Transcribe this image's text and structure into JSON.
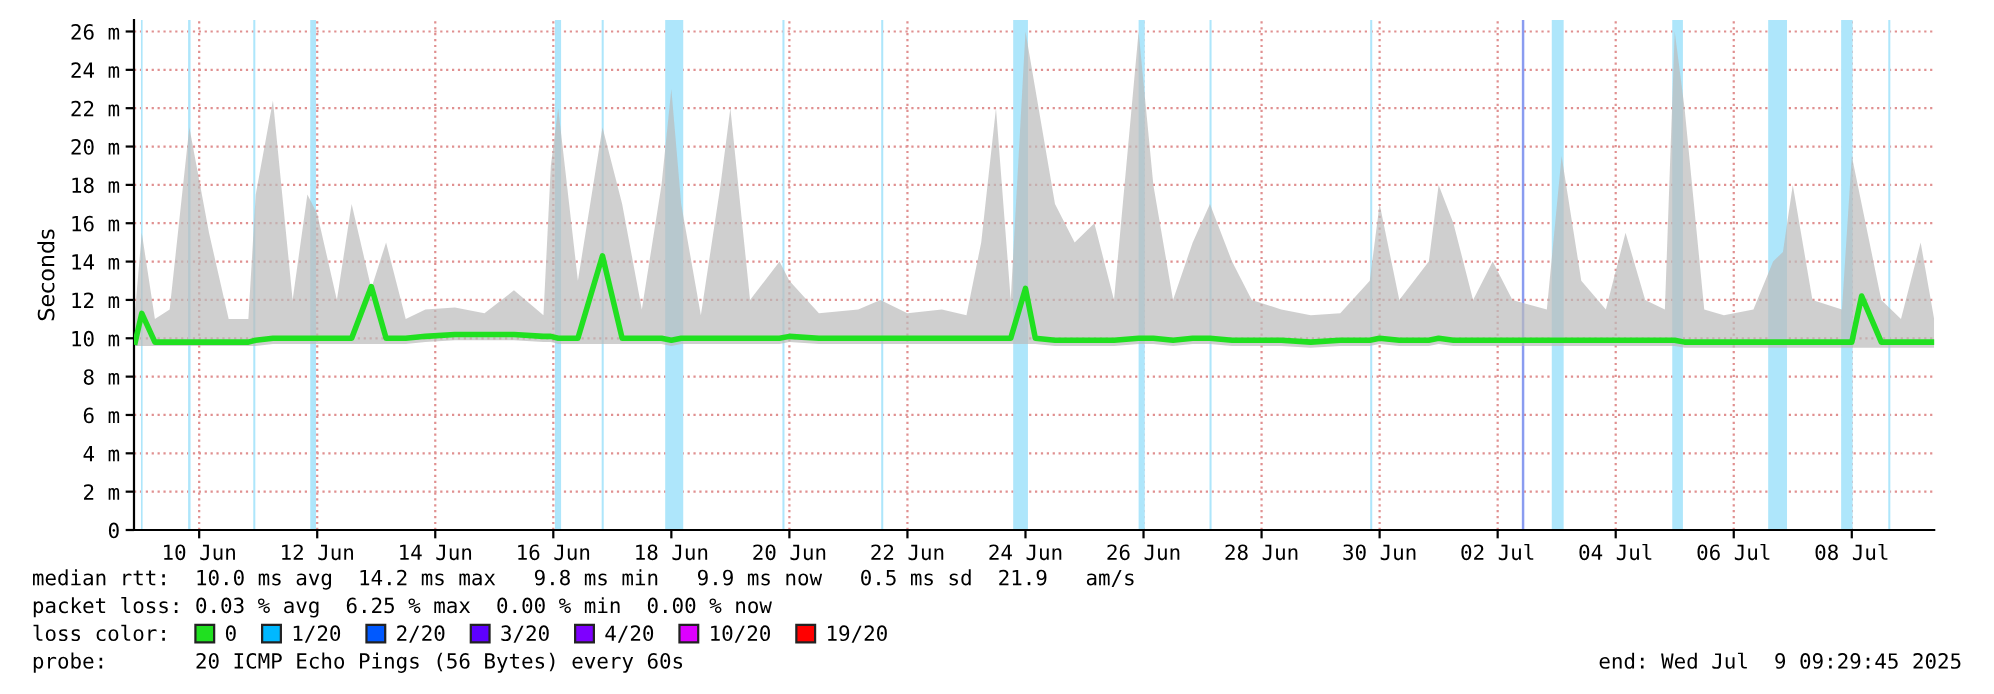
{
  "chart_data": {
    "type": "line",
    "ylabel": "Seconds",
    "legend_title": "loss color:",
    "annotations": [
      "median rtt:  10.0 ms avg  14.2 ms max   9.8 ms min   9.9 ms now   0.5 ms sd  21.9   am/s",
      "packet loss: 0.03 % avg  6.25 % max  0.00 % min  0.00 % now",
      "probe:       20 ICMP Echo Pings (56 Bytes) every 60s",
      "end: Wed Jul  9 09:29:45 2025"
    ],
    "x": [
      "2025-06-08T22:00",
      "2025-06-09T00:40",
      "2025-06-09T06:00",
      "2025-06-09T12:00",
      "2025-06-09T20:00",
      "2025-06-10T04:00",
      "2025-06-10T12:00",
      "2025-06-10T20:00",
      "2025-06-10T23:00",
      "2025-06-11T06:00",
      "2025-06-11T14:00",
      "2025-06-11T20:00",
      "2025-06-12T00:00",
      "2025-06-12T08:00",
      "2025-06-12T14:00",
      "2025-06-12T22:00",
      "2025-06-13T04:00",
      "2025-06-13T12:00",
      "2025-06-13T20:00",
      "2025-06-14T08:00",
      "2025-06-14T20:00",
      "2025-06-15T08:00",
      "2025-06-15T20:00",
      "2025-06-15T23:00",
      "2025-06-16T02:00",
      "2025-06-16T10:00",
      "2025-06-16T20:00",
      "2025-06-17T04:00",
      "2025-06-17T12:00",
      "2025-06-17T20:00",
      "2025-06-18T00:00",
      "2025-06-18T04:00",
      "2025-06-18T12:00",
      "2025-06-18T20:00",
      "2025-06-19T00:00",
      "2025-06-19T08:00",
      "2025-06-19T20:00",
      "2025-06-20T00:00",
      "2025-06-20T12:00",
      "2025-06-21T04:00",
      "2025-06-21T13:00",
      "2025-06-22T00:00",
      "2025-06-22T14:00",
      "2025-06-23T00:00",
      "2025-06-23T06:00",
      "2025-06-23T12:00",
      "2025-06-23T18:00",
      "2025-06-24T00:00",
      "2025-06-24T04:00",
      "2025-06-24T12:00",
      "2025-06-24T20:00",
      "2025-06-25T04:00",
      "2025-06-25T12:00",
      "2025-06-25T22:00",
      "2025-06-26T04:00",
      "2025-06-26T12:00",
      "2025-06-26T20:00",
      "2025-06-27T03:00",
      "2025-06-27T12:00",
      "2025-06-27T20:00",
      "2025-06-28T08:00",
      "2025-06-28T20:00",
      "2025-06-29T08:00",
      "2025-06-29T20:00",
      "2025-06-30T00:00",
      "2025-06-30T08:00",
      "2025-06-30T20:00",
      "2025-07-01T00:00",
      "2025-07-01T06:00",
      "2025-07-01T14:00",
      "2025-07-01T22:00",
      "2025-07-02T06:00",
      "2025-07-02T20:00",
      "2025-07-03T02:00",
      "2025-07-03T10:00",
      "2025-07-03T20:00",
      "2025-07-04T04:00",
      "2025-07-04T12:00",
      "2025-07-04T20:00",
      "2025-07-05T00:00",
      "2025-07-05T04:00",
      "2025-07-05T12:00",
      "2025-07-05T20:00",
      "2025-07-06T08:00",
      "2025-07-06T16:00",
      "2025-07-06T20:00",
      "2025-07-07T00:00",
      "2025-07-07T08:00",
      "2025-07-07T20:00",
      "2025-07-08T00:00",
      "2025-07-08T04:00",
      "2025-07-08T12:00",
      "2025-07-08T20:00",
      "2025-07-09T04:00",
      "2025-07-09T09:29"
    ],
    "series": [
      {
        "name": "0",
        "color": "#20e020",
        "values": [
          9.8,
          11.3,
          9.8,
          9.8,
          9.8,
          9.8,
          9.8,
          9.8,
          9.9,
          10,
          10,
          10,
          10,
          10,
          10,
          12.7,
          10,
          10,
          10.1,
          10.2,
          10.2,
          10.2,
          10.1,
          10.1,
          10,
          10,
          14.3,
          10,
          10,
          10,
          9.9,
          10,
          10,
          10,
          10,
          10,
          10,
          10.1,
          10,
          10,
          10,
          10,
          10,
          10,
          10,
          10,
          10,
          12.6,
          10,
          9.9,
          9.9,
          9.9,
          9.9,
          10,
          10,
          9.9,
          10,
          10,
          9.9,
          9.9,
          9.9,
          9.8,
          9.9,
          9.9,
          10,
          9.9,
          9.9,
          10,
          9.9,
          9.9,
          9.9,
          9.9,
          9.9,
          9.9,
          9.9,
          9.9,
          9.9,
          9.9,
          9.9,
          9.9,
          9.8,
          9.8,
          9.8,
          9.8,
          9.8,
          9.8,
          9.8,
          9.8,
          9.8,
          9.8,
          12.2,
          9.8,
          9.8,
          9.8,
          9.8
        ],
        "lower": [
          9.6,
          9.6,
          9.6,
          9.6,
          9.6,
          9.6,
          9.6,
          9.6,
          9.6,
          9.7,
          9.7,
          9.7,
          9.7,
          9.7,
          9.7,
          9.7,
          9.7,
          9.7,
          9.8,
          9.9,
          9.9,
          9.9,
          9.8,
          9.8,
          9.7,
          9.7,
          9.7,
          9.7,
          9.7,
          9.7,
          9.6,
          9.7,
          9.7,
          9.7,
          9.7,
          9.7,
          9.7,
          9.8,
          9.7,
          9.7,
          9.7,
          9.7,
          9.7,
          9.7,
          9.7,
          9.7,
          9.7,
          9.7,
          9.7,
          9.6,
          9.6,
          9.6,
          9.6,
          9.7,
          9.7,
          9.6,
          9.7,
          9.7,
          9.6,
          9.6,
          9.6,
          9.5,
          9.6,
          9.6,
          9.7,
          9.6,
          9.6,
          9.7,
          9.6,
          9.6,
          9.6,
          9.6,
          9.6,
          9.6,
          9.6,
          9.6,
          9.6,
          9.6,
          9.6,
          9.6,
          9.5,
          9.5,
          9.5,
          9.5,
          9.5,
          9.5,
          9.5,
          9.5,
          9.5,
          9.5,
          9.5,
          9.5,
          9.5,
          9.5,
          9.5
        ],
        "upper": [
          11.5,
          15.5,
          11,
          11.5,
          21,
          15.5,
          11,
          11,
          17.5,
          22.4,
          12,
          17.5,
          16.5,
          12,
          17,
          12.6,
          15,
          11,
          11.5,
          11.6,
          11.3,
          12.5,
          11.2,
          19,
          22,
          13,
          21,
          17,
          11.5,
          18,
          23,
          17,
          11.2,
          18,
          22,
          12,
          14,
          13,
          11.3,
          11.5,
          12,
          11.3,
          11.5,
          11.2,
          15,
          22,
          12,
          26,
          23,
          17,
          15,
          16,
          12,
          26,
          18,
          12,
          15,
          17,
          14,
          12,
          11.5,
          11.2,
          11.3,
          13,
          17,
          12,
          14,
          18,
          16,
          12,
          14,
          12,
          11.5,
          19.5,
          13,
          11.5,
          15.5,
          12,
          11.5,
          26,
          22,
          11.5,
          11.2,
          11.5,
          14,
          14.5,
          18,
          12,
          11.5,
          19.5,
          17,
          12,
          11,
          15,
          11
        ]
      },
      {
        "name": "1/20",
        "color": "#00b8ff",
        "values": [
          null,
          null,
          null,
          null,
          null,
          null,
          null,
          null,
          null,
          null,
          null,
          null,
          null,
          null,
          null,
          null,
          null,
          null,
          null,
          null,
          null,
          null,
          null,
          null,
          null,
          null,
          null,
          null,
          null,
          null,
          null,
          null,
          null,
          null,
          null,
          null,
          null,
          null,
          null,
          null,
          null,
          null,
          null,
          null,
          null,
          null,
          null,
          null,
          null,
          null,
          null,
          null,
          null,
          null,
          null,
          null,
          null,
          null,
          null,
          null,
          null,
          null,
          null,
          null,
          null,
          null,
          null,
          null,
          null,
          null,
          null,
          null,
          null,
          null,
          null,
          null,
          null,
          null,
          null,
          null,
          null,
          null,
          null,
          null,
          null,
          null,
          null,
          null,
          null,
          null,
          null,
          null,
          null,
          null,
          null
        ]
      },
      {
        "name": "2/20",
        "color": "#0059ff",
        "values": [
          null,
          null,
          null,
          null,
          null,
          null,
          null,
          null,
          null,
          null,
          null,
          null,
          null,
          null,
          null,
          null,
          null,
          null,
          null,
          null,
          null,
          null,
          null,
          null,
          null,
          null,
          null,
          null,
          null,
          null,
          null,
          null,
          null,
          null,
          null,
          null,
          null,
          null,
          null,
          null,
          null,
          null,
          null,
          null,
          null,
          null,
          null,
          null,
          null,
          null,
          null,
          null,
          null,
          null,
          null,
          null,
          null,
          null,
          null,
          null,
          null,
          null,
          null,
          null,
          null,
          null,
          null,
          null,
          null,
          null,
          null,
          null,
          null,
          null,
          null,
          null,
          null,
          null,
          null,
          null,
          null,
          null,
          null,
          null,
          null,
          null,
          null,
          null,
          null,
          null,
          null,
          null,
          null,
          null,
          null
        ]
      },
      {
        "name": "3/20",
        "color": "#5e00ff",
        "values": [
          null,
          null,
          null,
          null,
          null,
          null,
          null,
          null,
          null,
          null,
          null,
          null,
          null,
          null,
          null,
          null,
          null,
          null,
          null,
          null,
          null,
          null,
          null,
          null,
          null,
          null,
          null,
          null,
          null,
          null,
          null,
          null,
          null,
          null,
          null,
          null,
          null,
          null,
          null,
          null,
          null,
          null,
          null,
          null,
          null,
          null,
          null,
          null,
          null,
          null,
          null,
          null,
          null,
          null,
          null,
          null,
          null,
          null,
          null,
          null,
          null,
          null,
          null,
          null,
          null,
          null,
          null,
          null,
          null,
          null,
          null,
          null,
          null,
          null,
          null,
          null,
          null,
          null,
          null,
          null,
          null,
          null,
          null,
          null,
          null,
          null,
          null,
          null,
          null,
          null,
          null,
          null,
          null,
          null,
          null
        ]
      },
      {
        "name": "4/20",
        "color": "#7e00ff",
        "values": [
          null,
          null,
          null,
          null,
          null,
          null,
          null,
          null,
          null,
          null,
          null,
          null,
          null,
          null,
          null,
          null,
          null,
          null,
          null,
          null,
          null,
          null,
          null,
          null,
          null,
          null,
          null,
          null,
          null,
          null,
          null,
          null,
          null,
          null,
          null,
          null,
          null,
          null,
          null,
          null,
          null,
          null,
          null,
          null,
          null,
          null,
          null,
          null,
          null,
          null,
          null,
          null,
          null,
          null,
          null,
          null,
          null,
          null,
          null,
          null,
          null,
          null,
          null,
          null,
          null,
          null,
          null,
          null,
          null,
          null,
          null,
          null,
          null,
          null,
          null,
          null,
          null,
          null,
          null,
          null,
          null,
          null,
          null,
          null,
          null,
          null,
          null,
          null,
          null,
          null,
          null,
          null,
          null,
          null,
          null
        ]
      },
      {
        "name": "10/20",
        "color": "#dd00ff",
        "values": [
          null,
          null,
          null,
          null,
          null,
          null,
          null,
          null,
          null,
          null,
          null,
          null,
          null,
          null,
          null,
          null,
          null,
          null,
          null,
          null,
          null,
          null,
          null,
          null,
          null,
          null,
          null,
          null,
          null,
          null,
          null,
          null,
          null,
          null,
          null,
          null,
          null,
          null,
          null,
          null,
          null,
          null,
          null,
          null,
          null,
          null,
          null,
          null,
          null,
          null,
          null,
          null,
          null,
          null,
          null,
          null,
          null,
          null,
          null,
          null,
          null,
          null,
          null,
          null,
          null,
          null,
          null,
          null,
          null,
          null,
          null,
          null,
          null,
          null,
          null,
          null,
          null,
          null,
          null,
          null,
          null,
          null,
          null,
          null,
          null,
          null,
          null,
          null,
          null,
          null,
          null,
          null,
          null,
          null,
          null
        ]
      },
      {
        "name": "19/20",
        "color": "#ff0000",
        "values": [
          null,
          null,
          null,
          null,
          null,
          null,
          null,
          null,
          null,
          null,
          null,
          null,
          null,
          null,
          null,
          null,
          null,
          null,
          null,
          null,
          null,
          null,
          null,
          null,
          null,
          null,
          null,
          null,
          null,
          null,
          null,
          null,
          null,
          null,
          null,
          null,
          null,
          null,
          null,
          null,
          null,
          null,
          null,
          null,
          null,
          null,
          null,
          null,
          null,
          null,
          null,
          null,
          null,
          null,
          null,
          null,
          null,
          null,
          null,
          null,
          null,
          null,
          null,
          null,
          null,
          null,
          null,
          null,
          null,
          null,
          null,
          null,
          null,
          null,
          null,
          null,
          null,
          null,
          null,
          null,
          null,
          null,
          null,
          null,
          null,
          null,
          null,
          null,
          null,
          null,
          null,
          null,
          null,
          null,
          null
        ]
      }
    ],
    "bands": [
      {
        "axis": "x",
        "from": "2025-06-09T00:20",
        "to": "2025-06-09T01:00",
        "color": "#aee6fb"
      },
      {
        "axis": "x",
        "from": "2025-06-09T19:30",
        "to": "2025-06-09T20:30",
        "color": "#aee6fb"
      },
      {
        "axis": "x",
        "from": "2025-06-10T22:00",
        "to": "2025-06-10T22:50",
        "color": "#aee6fb"
      },
      {
        "axis": "x",
        "from": "2025-06-11T21:10",
        "to": "2025-06-11T23:30",
        "color": "#aee6fb"
      },
      {
        "axis": "x",
        "from": "2025-06-16T00:40",
        "to": "2025-06-16T03:10",
        "color": "#aee6fb"
      },
      {
        "axis": "x",
        "from": "2025-06-16T19:40",
        "to": "2025-06-16T20:30",
        "color": "#aee6fb"
      },
      {
        "axis": "x",
        "from": "2025-06-17T21:30",
        "to": "2025-06-18T04:50",
        "color": "#aee6fb"
      },
      {
        "axis": "x",
        "from": "2025-06-19T21:10",
        "to": "2025-06-19T22:00",
        "color": "#aee6fb"
      },
      {
        "axis": "x",
        "from": "2025-06-21T13:20",
        "to": "2025-06-21T14:10",
        "color": "#aee6fb"
      },
      {
        "axis": "x",
        "from": "2025-06-23T19:00",
        "to": "2025-06-24T01:00",
        "color": "#aee6fb"
      },
      {
        "axis": "x",
        "from": "2025-06-25T22:00",
        "to": "2025-06-26T00:30",
        "color": "#aee6fb"
      },
      {
        "axis": "x",
        "from": "2025-06-27T02:50",
        "to": "2025-06-27T03:40",
        "color": "#aee6fb"
      },
      {
        "axis": "x",
        "from": "2025-06-29T20:10",
        "to": "2025-06-29T21:00",
        "color": "#aee6fb"
      },
      {
        "axis": "x",
        "from": "2025-07-02T09:50",
        "to": "2025-07-02T10:50",
        "color": "#8a9cf0"
      },
      {
        "axis": "x",
        "from": "2025-07-02T22:00",
        "to": "2025-07-03T02:50",
        "color": "#aee6fb"
      },
      {
        "axis": "x",
        "from": "2025-07-04T23:00",
        "to": "2025-07-05T03:20",
        "color": "#aee6fb"
      },
      {
        "axis": "x",
        "from": "2025-07-06T14:00",
        "to": "2025-07-06T21:40",
        "color": "#aee6fb"
      },
      {
        "axis": "x",
        "from": "2025-07-07T19:40",
        "to": "2025-07-08T00:20",
        "color": "#aee6fb"
      },
      {
        "axis": "x",
        "from": "2025-07-08T14:50",
        "to": "2025-07-08T15:40",
        "color": "#aee6fb"
      }
    ],
    "xlim": [
      "2025-06-08T21:30",
      "2025-07-09T09:30"
    ],
    "xticks": [
      {
        "value": "2025-06-10",
        "label": "10 Jun"
      },
      {
        "value": "2025-06-12",
        "label": "12 Jun"
      },
      {
        "value": "2025-06-14",
        "label": "14 Jun"
      },
      {
        "value": "2025-06-16",
        "label": "16 Jun"
      },
      {
        "value": "2025-06-18",
        "label": "18 Jun"
      },
      {
        "value": "2025-06-20",
        "label": "20 Jun"
      },
      {
        "value": "2025-06-22",
        "label": "22 Jun"
      },
      {
        "value": "2025-06-24",
        "label": "24 Jun"
      },
      {
        "value": "2025-06-26",
        "label": "26 Jun"
      },
      {
        "value": "2025-06-28",
        "label": "28 Jun"
      },
      {
        "value": "2025-06-30",
        "label": "30 Jun"
      },
      {
        "value": "2025-07-02",
        "label": "02 Jul"
      },
      {
        "value": "2025-07-04",
        "label": "04 Jul"
      },
      {
        "value": "2025-07-06",
        "label": "06 Jul"
      },
      {
        "value": "2025-07-08",
        "label": "08 Jul"
      }
    ],
    "ylim": [
      0,
      26.6
    ],
    "yticks": [
      0,
      {
        "value": 2,
        "label": "2 m"
      },
      {
        "value": 4,
        "label": "4 m"
      },
      {
        "value": 6,
        "label": "6 m"
      },
      {
        "value": 8,
        "label": "8 m"
      },
      {
        "value": 10,
        "label": "10 m"
      },
      {
        "value": 12,
        "label": "12 m"
      },
      {
        "value": 14,
        "label": "14 m"
      },
      {
        "value": 16,
        "label": "16 m"
      },
      {
        "value": 18,
        "label": "18 m"
      },
      {
        "value": 20,
        "label": "20 m"
      },
      {
        "value": 22,
        "label": "22 m"
      },
      {
        "value": 24,
        "label": "24 m"
      },
      {
        "value": 26,
        "label": "26 m"
      }
    ],
    "grid": true,
    "legend": "bottom",
    "line_style": "solid"
  }
}
